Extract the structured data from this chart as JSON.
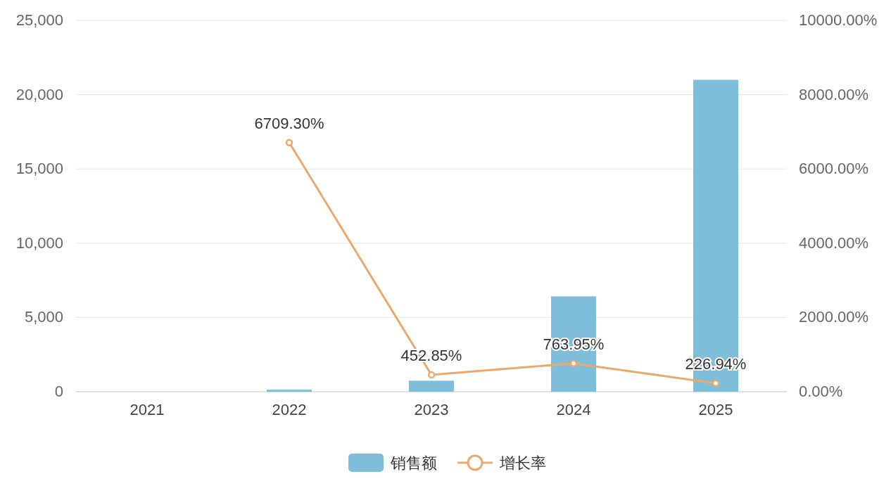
{
  "chart_data": {
    "type": "bar",
    "categories": [
      "2021",
      "2022",
      "2023",
      "2024",
      "2025"
    ],
    "series": [
      {
        "name": "销售额",
        "color": "#7fbedb",
        "values": [
          0,
          135,
          740,
          6420,
          21000
        ]
      },
      {
        "name": "增长率",
        "type": "line",
        "axis": "y2",
        "color": "#eba96c",
        "marker": "circle",
        "values": [
          null,
          6709.3,
          452.85,
          763.95,
          226.94
        ],
        "value_labels": [
          null,
          "6709.30%",
          "452.85%",
          "763.95%",
          "226.94%"
        ]
      }
    ],
    "ylim": [
      0,
      25000
    ],
    "yticks": [
      {
        "value": 0,
        "label": "0"
      },
      {
        "value": 5000,
        "label": "5,000"
      },
      {
        "value": 10000,
        "label": "10,000"
      },
      {
        "value": 15000,
        "label": "15,000"
      },
      {
        "value": 20000,
        "label": "20,000"
      },
      {
        "value": 25000,
        "label": "25,000"
      }
    ],
    "y2lim": [
      0,
      10000
    ],
    "y2ticks": [
      {
        "value": 0,
        "label": "0.00%"
      },
      {
        "value": 2000,
        "label": "2000.00%"
      },
      {
        "value": 4000,
        "label": "4000.00%"
      },
      {
        "value": 6000,
        "label": "6000.00%"
      },
      {
        "value": 8000,
        "label": "8000.00%"
      },
      {
        "value": 10000,
        "label": "10000.00%"
      }
    ],
    "grid": "y",
    "legend": "bottom"
  }
}
